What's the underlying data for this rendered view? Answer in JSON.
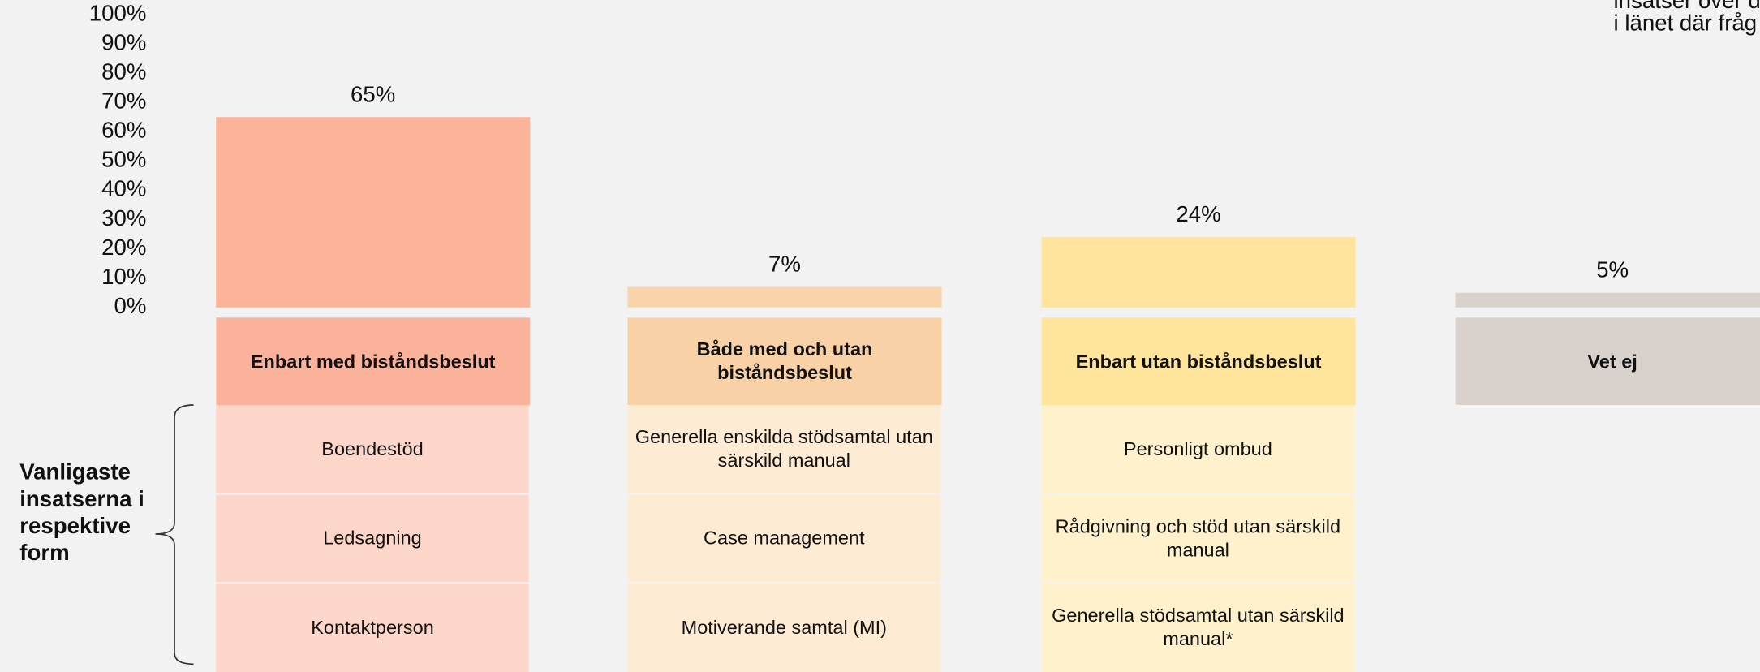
{
  "chart_data": {
    "type": "bar",
    "categories": [
      "Enbart med biståndsbeslut",
      "Både med och utan biståndsbeslut",
      "Enbart utan biståndsbeslut",
      "Vet ej"
    ],
    "values": [
      65,
      7,
      24,
      5
    ],
    "value_labels": [
      "65%",
      "7%",
      "24%",
      "5%"
    ],
    "colors": [
      "#fbb39a",
      "#f9d3a9",
      "#ffe49d",
      "#d9d2cc"
    ],
    "header_colors": [
      "#fbb29a",
      "#f9d1a6",
      "#ffe49b",
      "#d9d2cc"
    ],
    "cell_colors": [
      "#fdd6ca",
      "#fdebd4",
      "#fff1cc"
    ],
    "ylim": [
      0,
      100
    ],
    "yticks": [
      {
        "value": 0,
        "label": "0%"
      },
      {
        "value": 10,
        "label": "10%"
      },
      {
        "value": 20,
        "label": "20%"
      },
      {
        "value": 30,
        "label": "30%"
      },
      {
        "value": 40,
        "label": "40%"
      },
      {
        "value": 50,
        "label": "50%"
      },
      {
        "value": 60,
        "label": "60%"
      },
      {
        "value": 70,
        "label": "70%"
      },
      {
        "value": 80,
        "label": "80%"
      },
      {
        "value": 90,
        "label": "90%"
      },
      {
        "value": 100,
        "label": "100%"
      }
    ],
    "note": [
      "insatser över d",
      "i länet där fråg"
    ]
  },
  "table": {
    "label": [
      "Vanligaste",
      "insatserna i",
      "respektive",
      "form"
    ],
    "columns": [
      [
        "Boendestöd",
        "Ledsagning",
        "Kontaktperson"
      ],
      [
        "Generella enskilda stödsamtal utan särskild manual",
        "Case management",
        "Motiverande samtal (MI)"
      ],
      [
        "Personligt ombud",
        "Rådgivning och stöd utan särskild manual",
        "Generella stödsamtal utan särskild manual*"
      ]
    ]
  }
}
